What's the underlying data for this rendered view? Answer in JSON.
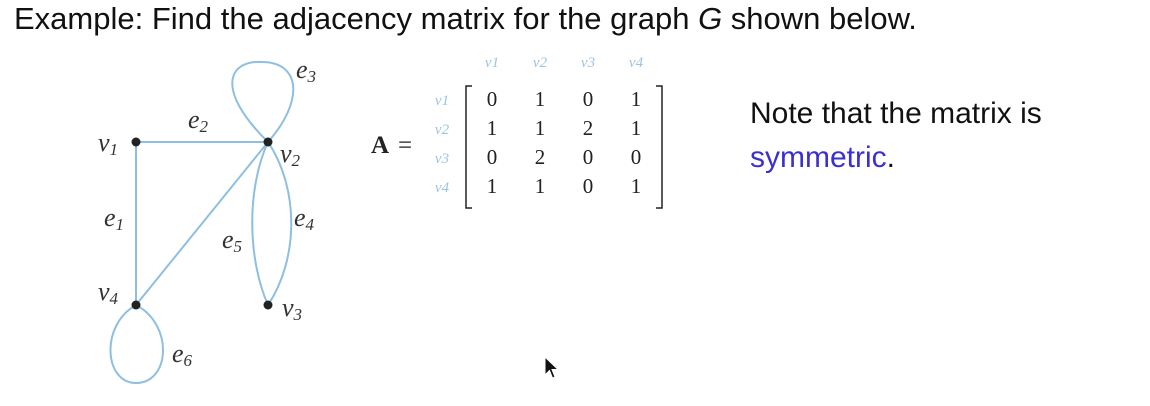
{
  "heading": {
    "prefix": "Example: Find the adjacency matrix for the graph ",
    "graph_name": "G",
    "suffix": " shown below."
  },
  "graph": {
    "vertices": [
      {
        "id": "v1",
        "base": "v",
        "sub": "1"
      },
      {
        "id": "v2",
        "base": "v",
        "sub": "2"
      },
      {
        "id": "v3",
        "base": "v",
        "sub": "3"
      },
      {
        "id": "v4",
        "base": "v",
        "sub": "4"
      }
    ],
    "edges": [
      {
        "id": "e1",
        "base": "e",
        "sub": "1",
        "from": "v1",
        "to": "v4"
      },
      {
        "id": "e2",
        "base": "e",
        "sub": "2",
        "from": "v1",
        "to": "v2"
      },
      {
        "id": "e3",
        "base": "e",
        "sub": "3",
        "from": "v2",
        "to": "v2"
      },
      {
        "id": "e4",
        "base": "e",
        "sub": "4",
        "from": "v2",
        "to": "v3"
      },
      {
        "id": "e5",
        "base": "e",
        "sub": "5",
        "from": "v2",
        "to": "v4"
      },
      {
        "id": "e5b",
        "base": "",
        "sub": "",
        "from": "v2",
        "to": "v3"
      },
      {
        "id": "e6",
        "base": "e",
        "sub": "6",
        "from": "v4",
        "to": "v4"
      }
    ],
    "edge_color": "#8fbfe0",
    "vertex_color": "#222222"
  },
  "matrix": {
    "name": "A",
    "equals": "=",
    "col_headers": [
      "v1",
      "v2",
      "v3",
      "v4"
    ],
    "row_headers": [
      "v1",
      "v2",
      "v3",
      "v4"
    ],
    "rows": [
      [
        "0",
        "1",
        "0",
        "1"
      ],
      [
        "1",
        "1",
        "2",
        "1"
      ],
      [
        "0",
        "2",
        "0",
        "0"
      ],
      [
        "1",
        "1",
        "0",
        "1"
      ]
    ],
    "header_color": "#9cc4dd"
  },
  "note": {
    "line": "Note that the matrix is",
    "highlight": "symmetric",
    "end": ".",
    "highlight_color": "#3a2fd0"
  }
}
